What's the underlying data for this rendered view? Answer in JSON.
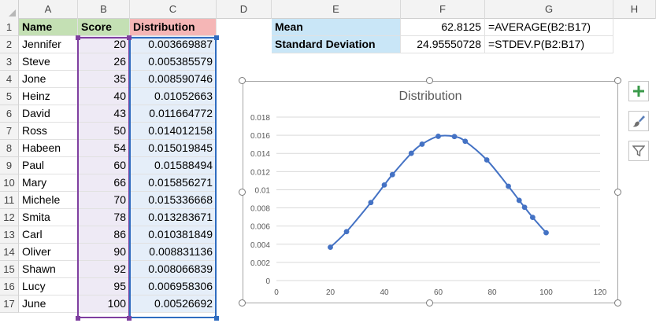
{
  "columns": [
    "A",
    "B",
    "C",
    "D",
    "E",
    "F",
    "G",
    "H"
  ],
  "rows": [
    "1",
    "2",
    "3",
    "4",
    "5",
    "6",
    "7",
    "8",
    "9",
    "10",
    "11",
    "12",
    "13",
    "14",
    "15",
    "16",
    "17"
  ],
  "headers": {
    "name": "Name",
    "score": "Score",
    "distribution": "Distribution"
  },
  "table": [
    {
      "name": "Jennifer",
      "score": "20",
      "dist": "0.003669887"
    },
    {
      "name": "Steve",
      "score": "26",
      "dist": "0.005385579"
    },
    {
      "name": "Jone",
      "score": "35",
      "dist": "0.008590746"
    },
    {
      "name": "Heinz",
      "score": "40",
      "dist": "0.01052663"
    },
    {
      "name": "David",
      "score": "43",
      "dist": "0.011664772"
    },
    {
      "name": "Ross",
      "score": "50",
      "dist": "0.014012158"
    },
    {
      "name": "Habeen",
      "score": "54",
      "dist": "0.015019845"
    },
    {
      "name": "Paul",
      "score": "60",
      "dist": "0.01588494"
    },
    {
      "name": "Mary",
      "score": "66",
      "dist": "0.015856271"
    },
    {
      "name": "Michele",
      "score": "70",
      "dist": "0.015336668"
    },
    {
      "name": "Smita",
      "score": "78",
      "dist": "0.013283671"
    },
    {
      "name": "Carl",
      "score": "86",
      "dist": "0.010381849"
    },
    {
      "name": "Oliver",
      "score": "90",
      "dist": "0.008831136"
    },
    {
      "name": "Shawn",
      "score": "92",
      "dist": "0.008066839"
    },
    {
      "name": "Lucy",
      "score": "95",
      "dist": "0.006958306"
    },
    {
      "name": "June",
      "score": "100",
      "dist": "0.00526692"
    }
  ],
  "stats": {
    "mean_label": "Mean",
    "mean_value": "62.8125",
    "mean_formula": "=AVERAGE(B2:B17)",
    "sd_label": "Standard Deviation",
    "sd_value": "24.95550728",
    "sd_formula": "=STDEV.P(B2:B17)"
  },
  "colors": {
    "name_header": "#c4e0b4",
    "score_header": "#c4e0b4",
    "dist_header": "#f5b6b6",
    "score_fill": "#eeeaf5",
    "dist_fill": "#e5eef9",
    "stats_label_fill": "#c9e6f7",
    "series": "#4472c4"
  },
  "side_buttons": [
    "plus-icon",
    "brush-icon",
    "filter-icon"
  ],
  "chart_data": {
    "type": "scatter",
    "title": "Distribution",
    "xlim": [
      0,
      120
    ],
    "ylim": [
      0,
      0.018
    ],
    "x_ticks": [
      "0",
      "20",
      "40",
      "60",
      "80",
      "100",
      "120"
    ],
    "y_ticks": [
      "0",
      "0.002",
      "0.004",
      "0.006",
      "0.008",
      "0.01",
      "0.012",
      "0.014",
      "0.016",
      "0.018"
    ],
    "grid": true,
    "smooth_line": true,
    "series": [
      {
        "x": [
          20,
          26,
          35,
          40,
          43,
          50,
          54,
          60,
          66,
          70,
          78,
          86,
          90,
          92,
          95,
          100
        ],
        "y": [
          0.003669887,
          0.005385579,
          0.008590746,
          0.01052663,
          0.011664772,
          0.014012158,
          0.015019845,
          0.01588494,
          0.015856271,
          0.015336668,
          0.013283671,
          0.010381849,
          0.008831136,
          0.008066839,
          0.006958306,
          0.00526692
        ]
      }
    ]
  }
}
